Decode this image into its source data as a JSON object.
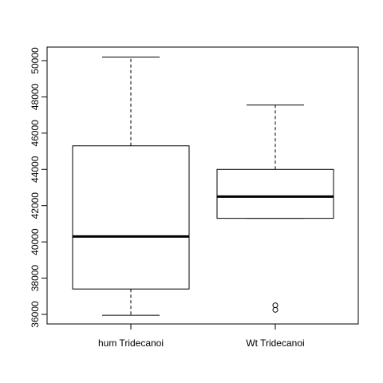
{
  "chart_data": {
    "type": "box",
    "title": "",
    "xlabel": "",
    "ylabel": "",
    "ylim": [
      35500,
      50800
    ],
    "yticks": [
      36000,
      38000,
      40000,
      42000,
      44000,
      46000,
      48000,
      50000
    ],
    "grid": false,
    "categories": [
      "hum Tridecanoi",
      "Wt Tridecanoi"
    ],
    "boxes": [
      {
        "label": "hum Tridecanoi",
        "whisker_low": 35950,
        "q1": 37400,
        "median": 40300,
        "q3": 45300,
        "whisker_high": 50200,
        "outliers": []
      },
      {
        "label": "Wt Tridecanoi",
        "whisker_low": 41300,
        "q1": 41300,
        "median": 42500,
        "q3": 44000,
        "whisker_high": 47550,
        "outliers": [
          36500,
          36250
        ]
      }
    ],
    "colors": {
      "box_fill": "#ffffff",
      "stroke": "#000000"
    }
  }
}
